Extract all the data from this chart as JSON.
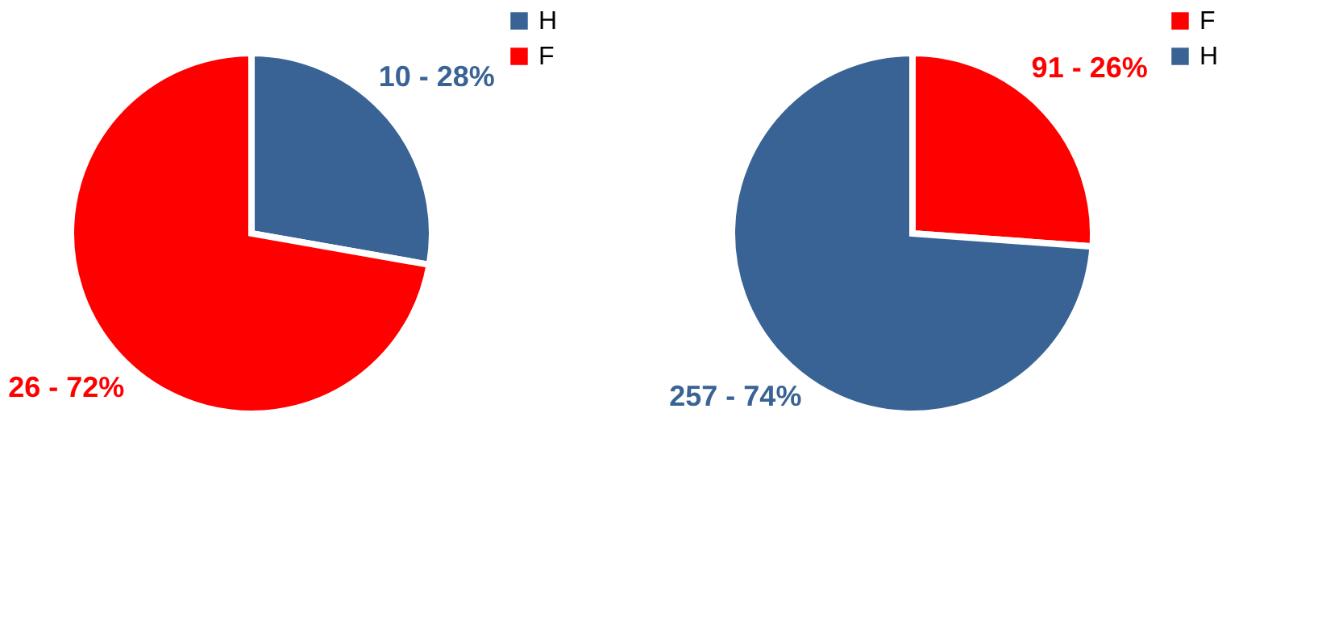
{
  "chart_data": [
    {
      "type": "pie",
      "categories": [
        "H",
        "F"
      ],
      "values": [
        10,
        26
      ],
      "colors": [
        "#3a6395",
        "#ff0000"
      ],
      "value_labels": [
        "10 - 28%",
        "26 - 72%"
      ],
      "legend": "right"
    },
    {
      "type": "pie",
      "categories": [
        "F",
        "H"
      ],
      "values": [
        91,
        257
      ],
      "colors": [
        "#ff0000",
        "#3a6395"
      ],
      "value_labels": [
        "91 - 26%",
        "257 - 74%"
      ],
      "legend": "right"
    }
  ]
}
